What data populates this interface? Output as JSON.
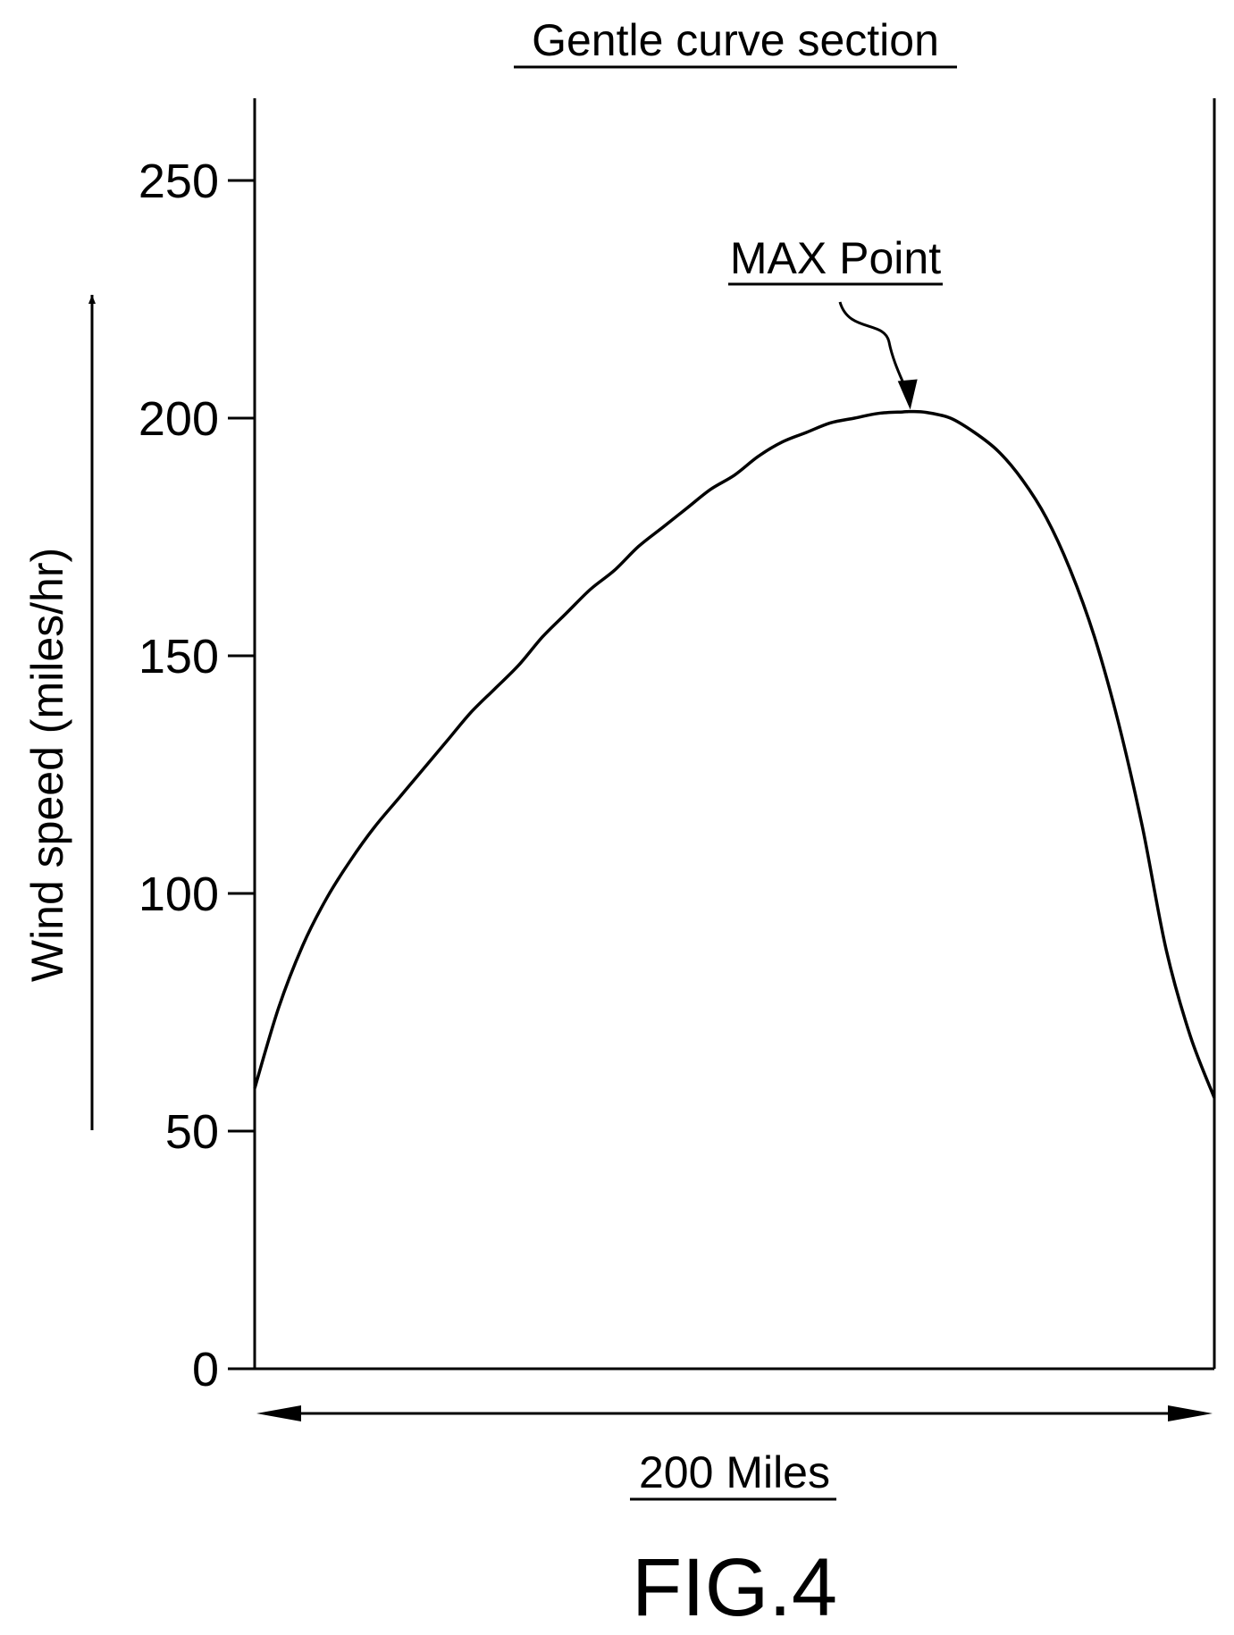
{
  "chart_data": {
    "type": "line",
    "title": "Gentle curve section",
    "ylabel": "Wind speed (miles/hr)",
    "xlabel": "200 Miles",
    "ylim": [
      0,
      270
    ],
    "xlim": [
      0,
      200
    ],
    "y_ticks": [
      "0",
      "50",
      "100",
      "150",
      "200",
      "250"
    ],
    "y_tick_values": [
      0,
      50,
      100,
      150,
      200,
      250
    ],
    "grid": false,
    "series": [
      {
        "x": [
          0,
          5,
          10,
          15,
          20,
          25,
          30,
          35,
          40,
          45,
          50,
          55,
          60,
          65,
          70,
          75,
          80,
          85,
          90,
          95,
          100,
          105,
          110,
          115,
          120,
          125,
          130,
          135,
          137,
          140,
          145,
          150,
          155,
          160,
          165,
          170,
          175,
          180,
          185,
          190,
          195,
          200
        ],
        "y": [
          59,
          76,
          89,
          99,
          107,
          114,
          120,
          126,
          132,
          138,
          143,
          148,
          154,
          159,
          164,
          168,
          173,
          177,
          181,
          185,
          188,
          192,
          195,
          197,
          199,
          200,
          201,
          201.3,
          201.4,
          201.2,
          200,
          197,
          193,
          187,
          179,
          168,
          154,
          136,
          114,
          88,
          70,
          57
        ]
      }
    ],
    "annotation": {
      "text": "MAX Point",
      "x": 137,
      "y": 201.4
    }
  },
  "figure_label": "FIG.4"
}
